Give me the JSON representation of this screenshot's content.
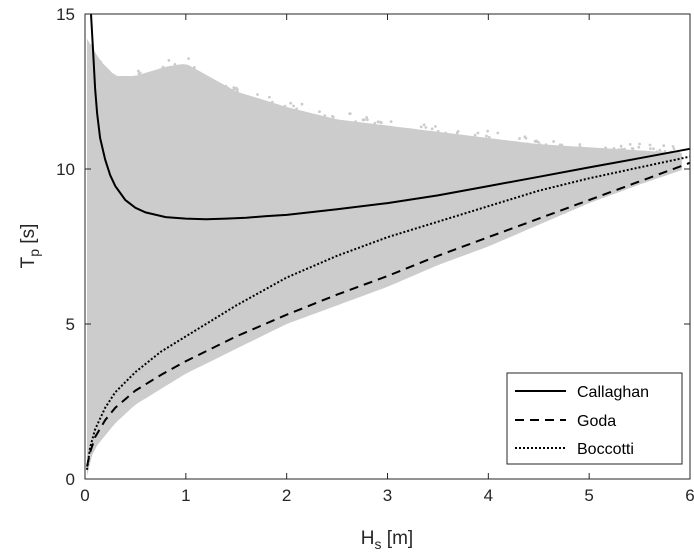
{
  "chart_data": {
    "type": "scatter",
    "xlabel": {
      "main": "H",
      "sub": "s",
      "unit": " [m]"
    },
    "ylabel": {
      "main": "T",
      "sub": "p",
      "unit": " [s]"
    },
    "xlim": [
      0,
      6
    ],
    "ylim": [
      0,
      15
    ],
    "xticks": [
      0,
      1,
      2,
      3,
      4,
      5,
      6
    ],
    "yticks": [
      0,
      5,
      10,
      15
    ],
    "grid": false,
    "legend_position": "bottom-right",
    "scatter_color": "#cccccc",
    "scatter_envelope": {
      "description": "dense cloud of measured sea states",
      "upper": [
        [
          0.02,
          14.2
        ],
        [
          0.15,
          13.5
        ],
        [
          0.3,
          13.0
        ],
        [
          0.5,
          13.0
        ],
        [
          0.8,
          13.3
        ],
        [
          1.0,
          13.4
        ],
        [
          1.5,
          12.5
        ],
        [
          2.0,
          12.0
        ],
        [
          2.5,
          11.6
        ],
        [
          3.0,
          11.4
        ],
        [
          3.5,
          11.2
        ],
        [
          4.0,
          11.0
        ],
        [
          4.5,
          10.8
        ],
        [
          5.0,
          10.7
        ],
        [
          5.5,
          10.6
        ],
        [
          5.95,
          10.5
        ]
      ],
      "lower": [
        [
          0.02,
          0.1
        ],
        [
          0.05,
          0.6
        ],
        [
          0.1,
          1.0
        ],
        [
          0.2,
          1.4
        ],
        [
          0.3,
          1.8
        ],
        [
          0.5,
          2.4
        ],
        [
          0.8,
          3.0
        ],
        [
          1.0,
          3.4
        ],
        [
          1.5,
          4.2
        ],
        [
          2.0,
          5.0
        ],
        [
          2.5,
          5.6
        ],
        [
          3.0,
          6.2
        ],
        [
          3.5,
          6.9
        ],
        [
          4.0,
          7.5
        ],
        [
          4.5,
          8.2
        ],
        [
          5.0,
          8.9
        ],
        [
          5.5,
          9.5
        ],
        [
          5.95,
          10.0
        ]
      ]
    },
    "series": [
      {
        "name": "Callaghan",
        "style": "solid",
        "color": "#000000",
        "x": [
          0.06,
          0.08,
          0.1,
          0.12,
          0.15,
          0.2,
          0.25,
          0.3,
          0.4,
          0.5,
          0.6,
          0.8,
          1.0,
          1.2,
          1.4,
          1.6,
          1.8,
          2.0,
          2.5,
          3.0,
          3.5,
          4.0,
          4.5,
          5.0,
          5.5,
          6.0
        ],
        "y": [
          15.0,
          13.8,
          12.6,
          11.8,
          11.0,
          10.3,
          9.8,
          9.45,
          9.0,
          8.75,
          8.6,
          8.45,
          8.4,
          8.38,
          8.4,
          8.43,
          8.48,
          8.52,
          8.7,
          8.9,
          9.15,
          9.45,
          9.75,
          10.05,
          10.35,
          10.65
        ]
      },
      {
        "name": "Goda",
        "style": "dashed",
        "color": "#000000",
        "x": [
          0.02,
          0.05,
          0.1,
          0.2,
          0.3,
          0.5,
          0.75,
          1.0,
          1.5,
          2.0,
          2.5,
          3.0,
          3.5,
          4.0,
          4.5,
          5.0,
          5.5,
          6.0
        ],
        "y": [
          0.4,
          0.85,
          1.35,
          1.9,
          2.3,
          2.85,
          3.35,
          3.8,
          4.6,
          5.3,
          5.95,
          6.55,
          7.2,
          7.8,
          8.4,
          9.0,
          9.6,
          10.2
        ]
      },
      {
        "name": "Boccotti",
        "style": "dotted",
        "color": "#000000",
        "x": [
          0.02,
          0.05,
          0.1,
          0.2,
          0.3,
          0.5,
          0.75,
          1.0,
          1.5,
          2.0,
          2.5,
          3.0,
          3.5,
          4.0,
          4.5,
          5.0,
          5.5,
          6.0
        ],
        "y": [
          0.3,
          1.0,
          1.6,
          2.3,
          2.8,
          3.45,
          4.1,
          4.6,
          5.6,
          6.5,
          7.2,
          7.8,
          8.3,
          8.8,
          9.3,
          9.7,
          10.05,
          10.4
        ]
      }
    ]
  }
}
